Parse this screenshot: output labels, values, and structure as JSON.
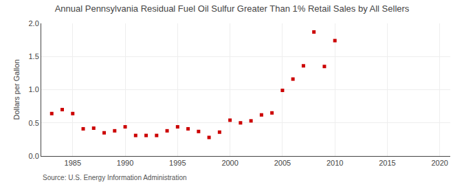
{
  "chart_data": {
    "type": "scatter",
    "title": "Annual Pennsylvania Residual Fuel Oil Sulfur Greater Than 1% Retail Sales by All Sellers",
    "ylabel": "Dollars per Gallon",
    "annotations": [
      "Source: U.S. Energy Information Administration"
    ],
    "x": [
      1983,
      1984,
      1985,
      1986,
      1987,
      1988,
      1989,
      1990,
      1991,
      1992,
      1993,
      1994,
      1995,
      1996,
      1997,
      1998,
      1999,
      2000,
      2001,
      2002,
      2003,
      2004,
      2005,
      2006,
      2007,
      2008,
      2009,
      2010
    ],
    "values": [
      0.64,
      0.7,
      0.64,
      0.41,
      0.42,
      0.35,
      0.38,
      0.44,
      0.31,
      0.31,
      0.31,
      0.38,
      0.44,
      0.41,
      0.37,
      0.28,
      0.36,
      0.54,
      0.5,
      0.53,
      0.62,
      0.65,
      0.99,
      1.16,
      1.36,
      1.87,
      1.35,
      1.74
    ],
    "color": "#cc0000",
    "marker": "square",
    "xlim": [
      1982,
      2021
    ],
    "ylim": [
      0.0,
      2.0
    ],
    "xticks": [
      1985,
      1990,
      1995,
      2000,
      2005,
      2010,
      2015,
      2020
    ],
    "yticks": [
      {
        "value": 0.0,
        "label": "0.0"
      },
      0.5,
      {
        "value": 1.0,
        "label": "1.0"
      },
      1.5,
      {
        "value": 2.0,
        "label": "2.0"
      }
    ],
    "grid": true
  }
}
